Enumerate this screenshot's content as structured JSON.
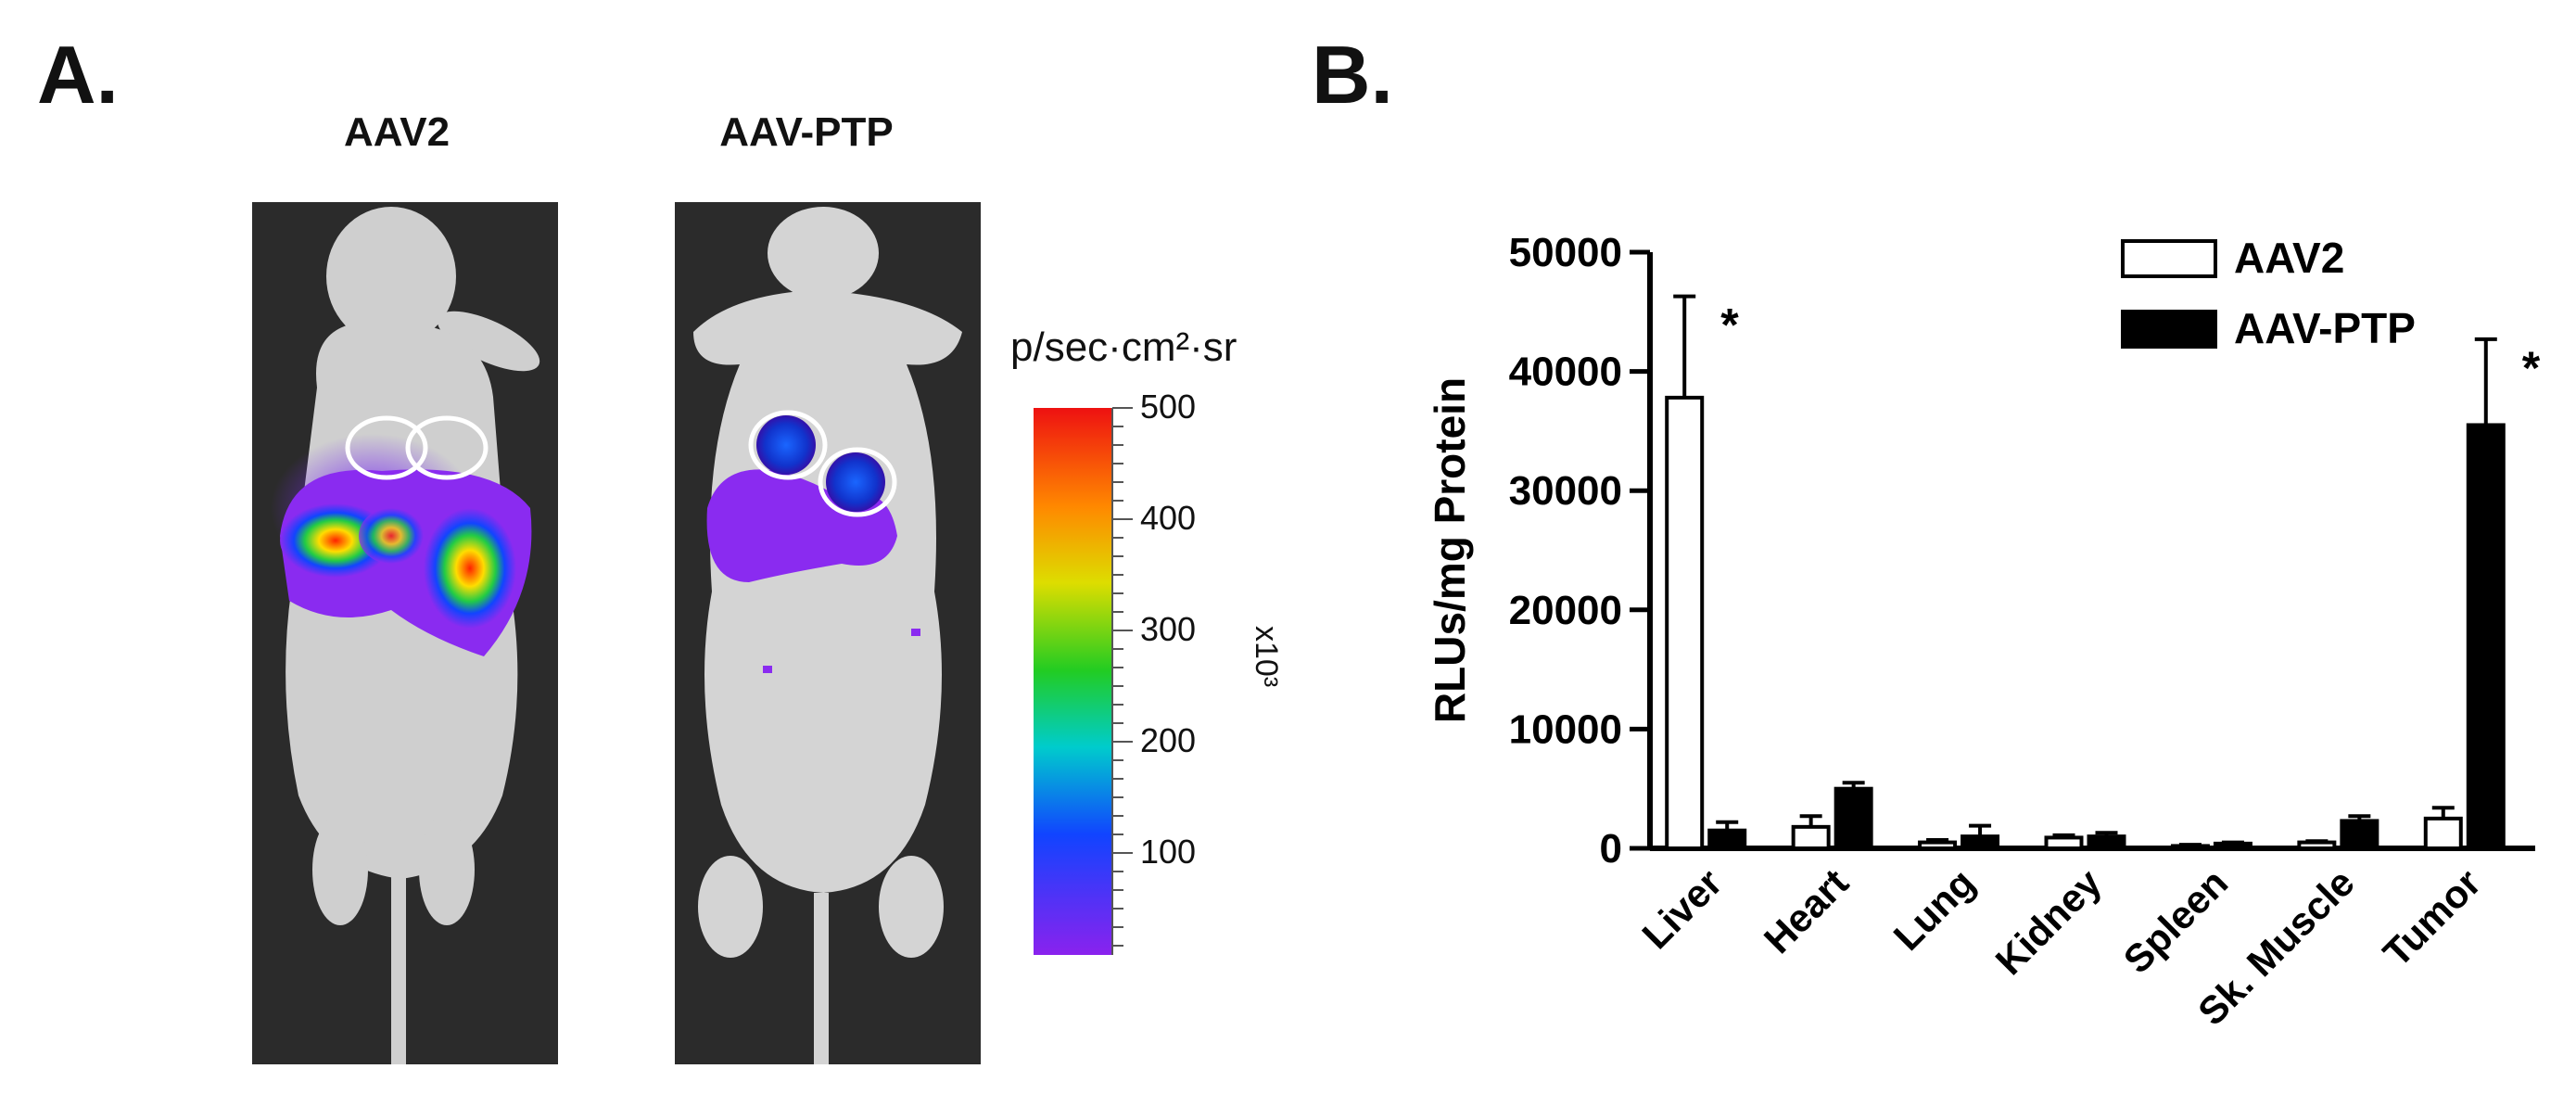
{
  "panel_a": {
    "letter": "A.",
    "mouse_left_title": "AAV2",
    "mouse_right_title": "AAV-PTP",
    "colorbar": {
      "title": "p/sec·cm²·sr",
      "ticks": [
        "500",
        "400",
        "300",
        "200",
        "100"
      ],
      "unit": "x10³"
    }
  },
  "panel_b": {
    "letter": "B."
  },
  "chart_data": {
    "type": "bar",
    "categories": [
      "Liver",
      "Heart",
      "Lung",
      "Kidney",
      "Spleen",
      "Sk. Muscle",
      "Tumor"
    ],
    "series": [
      {
        "name": "AAV2",
        "values": [
          37800,
          1800,
          500,
          900,
          200,
          500,
          2500
        ],
        "errors": [
          8500,
          900,
          200,
          200,
          100,
          100,
          900
        ],
        "color": "#ffffff"
      },
      {
        "name": "AAV-PTP",
        "values": [
          1500,
          5000,
          1000,
          1000,
          400,
          2300,
          35500
        ],
        "errors": [
          700,
          500,
          900,
          300,
          100,
          400,
          7200
        ],
        "color": "#000000"
      }
    ],
    "significance": [
      {
        "category": "Liver",
        "series": "AAV2",
        "label": "*"
      },
      {
        "category": "Tumor",
        "series": "AAV-PTP",
        "label": "*"
      }
    ],
    "ylabel": "RLUs/mg Protein",
    "xlabel": "",
    "ylim": [
      0,
      50000
    ],
    "yticks": [
      0,
      10000,
      20000,
      30000,
      40000,
      50000
    ],
    "ytick_labels": [
      "0",
      "10000",
      "20000",
      "30000",
      "40000",
      "50000"
    ],
    "legend": "top-right",
    "grid": false
  }
}
